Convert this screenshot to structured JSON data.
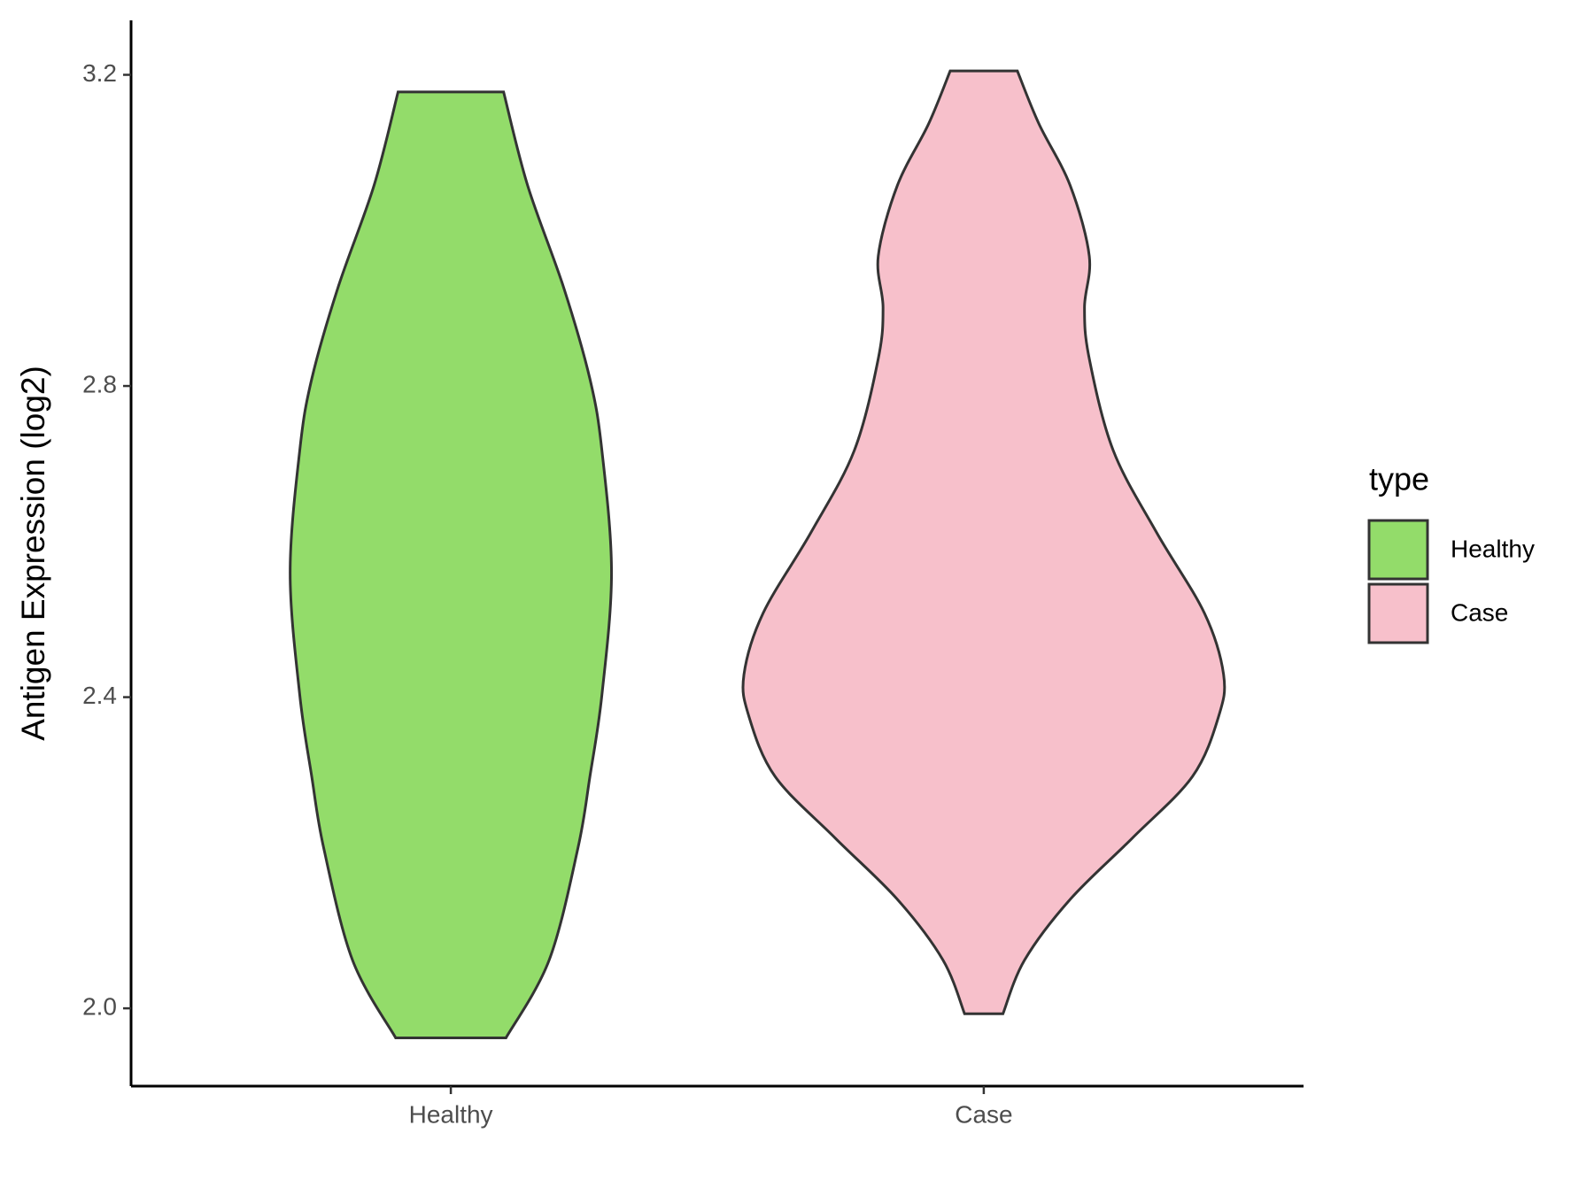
{
  "chart_data": {
    "type": "violin",
    "y_label": "Antigen Expression (log2)",
    "categories": [
      "Healthy",
      "Case"
    ],
    "legend_title": "type",
    "ylim": [
      1.9,
      3.27
    ],
    "yticks": [
      {
        "value": 2,
        "label": "2.0"
      },
      2.4,
      2.8,
      {
        "value": 3.2,
        "label": "3.2"
      }
    ],
    "series": [
      {
        "name": "Healthy",
        "color": "#93dc6a",
        "y": [
          1.962,
          2.062,
          2.206,
          2.298,
          2.403,
          2.56,
          2.717,
          2.809,
          2.927,
          3.058,
          3.178
        ],
        "density": [
          0.23,
          0.41,
          0.53,
          0.58,
          0.63,
          0.67,
          0.63,
          0.58,
          0.47,
          0.32,
          0.22
        ]
      },
      {
        "name": "Case",
        "color": "#f7c0cb",
        "y": [
          1.993,
          2.062,
          2.14,
          2.219,
          2.298,
          2.376,
          2.429,
          2.508,
          2.612,
          2.717,
          2.835,
          2.901,
          2.967,
          3.058,
          3.137,
          3.205
        ],
        "density": [
          0.08,
          0.17,
          0.36,
          0.62,
          0.87,
          0.98,
          1.0,
          0.92,
          0.72,
          0.54,
          0.44,
          0.42,
          0.44,
          0.36,
          0.23,
          0.14
        ]
      }
    ]
  }
}
